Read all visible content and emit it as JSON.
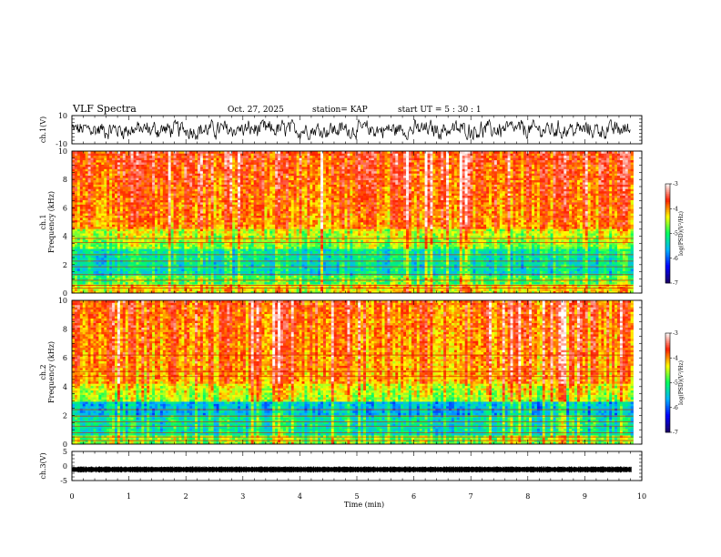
{
  "header": {
    "title": "VLF Spectra",
    "date": "Oct. 27, 2025",
    "station": "station= KAP",
    "start_ut": "start  UT =   5 : 30 : 1"
  },
  "chart_data": [
    {
      "type": "line",
      "id": "ch1-waveform",
      "ylabel": "ch.1(V)",
      "ylim": [
        -10,
        10
      ],
      "yticks": [
        "10",
        "-10"
      ],
      "xlim": [
        0,
        10
      ],
      "data_extent_min": 9.8,
      "description_of_series": "noisy voltage waveform oscillating roughly between -6 and 6 V"
    },
    {
      "type": "heatmap",
      "id": "ch1-spectrogram",
      "ylabel": "ch.1\nFrequency (kHz)",
      "ylim": [
        0,
        10
      ],
      "yticks": [
        "0",
        "2",
        "4",
        "6",
        "8",
        "10"
      ],
      "xlim": [
        0,
        10
      ],
      "colorbar": {
        "label": "log(PSD)(V²/Hz)",
        "range": [
          -7,
          -3
        ],
        "ticks": [
          "-3",
          "-4",
          "-5",
          "-6",
          "-7"
        ]
      }
    },
    {
      "type": "heatmap",
      "id": "ch2-spectrogram",
      "ylabel": "ch.2\nFrequency (kHz)",
      "ylim": [
        0,
        10
      ],
      "yticks": [
        "0",
        "2",
        "4",
        "6",
        "8",
        "10"
      ],
      "xlim": [
        0,
        10
      ],
      "colorbar": {
        "label": "log(PSD)(V²/Hz)",
        "range": [
          -7,
          -3
        ],
        "ticks": [
          "-3",
          "-4",
          "-5",
          "-6",
          "-7"
        ]
      }
    },
    {
      "type": "line",
      "id": "ch3-waveform",
      "ylabel": "ch.3(V)",
      "ylim": [
        -5,
        5
      ],
      "yticks": [
        "5",
        "0",
        "-5"
      ],
      "xlim": [
        0,
        10
      ],
      "level_v": -1.2
    }
  ],
  "xaxis": {
    "label": "Time  (min)",
    "ticks": [
      "0",
      "1",
      "2",
      "3",
      "4",
      "5",
      "6",
      "7",
      "8",
      "9",
      "10"
    ]
  },
  "colors": {
    "waveform": "#000000",
    "colormap": [
      "#1a0060",
      "#0000ff",
      "#00b4ff",
      "#00ff60",
      "#ffff00",
      "#ff2000",
      "#ffffff"
    ]
  }
}
